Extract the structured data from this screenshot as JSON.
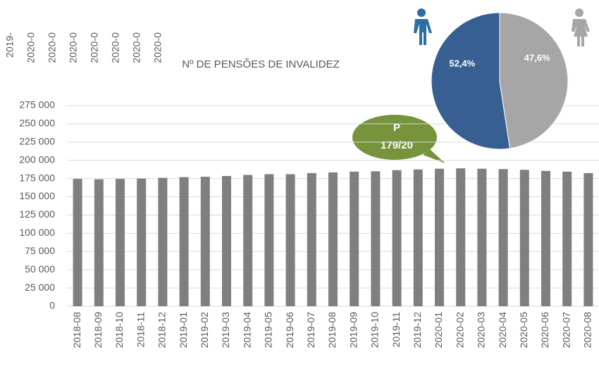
{
  "chart_data": [
    {
      "type": "bar",
      "title": "Nº DE PENSÕES DE INVALIDEZ",
      "categories": [
        "2018-08",
        "2018-09",
        "2018-10",
        "2018-11",
        "2018-12",
        "2019-01",
        "2019-02",
        "2019-03",
        "2019-04",
        "2019-05",
        "2019-06",
        "2019-07",
        "2019-08",
        "2019-09",
        "2019-10",
        "2019-11",
        "2019-12",
        "2020-01",
        "2020-02",
        "2020-03",
        "2020-04",
        "2020-05",
        "2020-06",
        "2020-07",
        "2020-08"
      ],
      "values": [
        174500,
        174000,
        174500,
        175000,
        176000,
        177000,
        177500,
        178500,
        180000,
        181000,
        181000,
        182500,
        183500,
        184500,
        185000,
        186500,
        187500,
        188500,
        189000,
        188500,
        188000,
        187000,
        185500,
        184500,
        182500
      ],
      "color": "#7f7f7f",
      "ylim": [
        0,
        275000
      ],
      "yticks": [
        0,
        {
          "value": 25000,
          "label": "25 000"
        },
        {
          "value": 50000,
          "label": "50 000"
        },
        {
          "value": 75000,
          "label": "75 000"
        },
        {
          "value": 100000,
          "label": "100 000"
        },
        {
          "value": 125000,
          "label": "125 000"
        },
        {
          "value": 150000,
          "label": "150 000"
        },
        {
          "value": 175000,
          "label": "175 000"
        },
        {
          "value": 200000,
          "label": "200 000"
        },
        {
          "value": 225000,
          "label": "225 000"
        },
        {
          "value": 250000,
          "label": "250 000"
        },
        {
          "value": 275000,
          "label": "275 000"
        }
      ],
      "grid": true,
      "annotations": [
        "P",
        "179/20"
      ],
      "clipped_labels": [
        "2019-",
        "2020-0",
        "2020-0",
        "2020-0",
        "2020-0",
        "2020-0",
        "2020-0",
        "2020-0"
      ]
    },
    {
      "type": "pie",
      "values": [
        52.4,
        47.6
      ],
      "value_labels": [
        "52,4%",
        "47,6%"
      ],
      "colors": [
        "#375f91",
        "#a6a6a6"
      ]
    }
  ]
}
